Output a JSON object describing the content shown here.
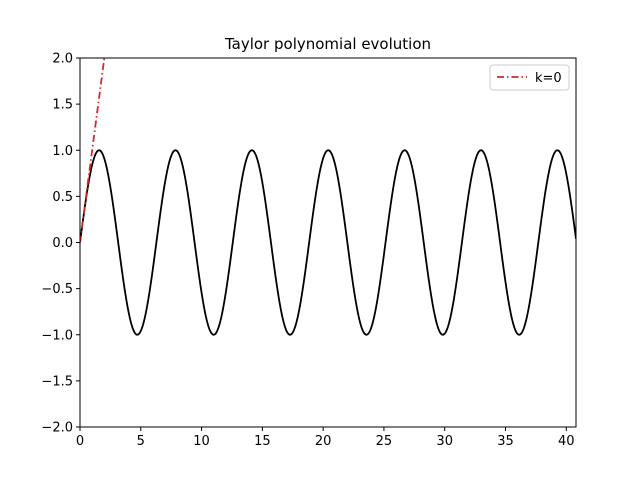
{
  "chart_data": {
    "type": "line",
    "title": "Taylor polynomial evolution",
    "xlabel": "",
    "ylabel": "",
    "xlim": [
      0,
      40.8
    ],
    "ylim": [
      -2.0,
      2.0
    ],
    "xticks": [
      0,
      5,
      10,
      15,
      20,
      25,
      30,
      35,
      40
    ],
    "xtick_labels": [
      "0",
      "5",
      "10",
      "15",
      "20",
      "25",
      "30",
      "35",
      "40"
    ],
    "yticks": [
      -2.0,
      -1.5,
      -1.0,
      -0.5,
      0.0,
      0.5,
      1.0,
      1.5,
      2.0
    ],
    "ytick_labels": [
      "−2.0",
      "−1.5",
      "−1.0",
      "−0.5",
      "0.0",
      "0.5",
      "1.0",
      "1.5",
      "2.0"
    ],
    "grid": false,
    "legend_position": "top-right",
    "series": [
      {
        "function": "sin(x)",
        "color": "#000000",
        "linestyle": "solid",
        "in_legend": false,
        "x_range": [
          0,
          40.8
        ]
      },
      {
        "name": "k=0",
        "function": "x",
        "color": "#d62728",
        "linestyle": "dashdot",
        "in_legend": true,
        "x_range": [
          0,
          2.0
        ]
      }
    ]
  }
}
